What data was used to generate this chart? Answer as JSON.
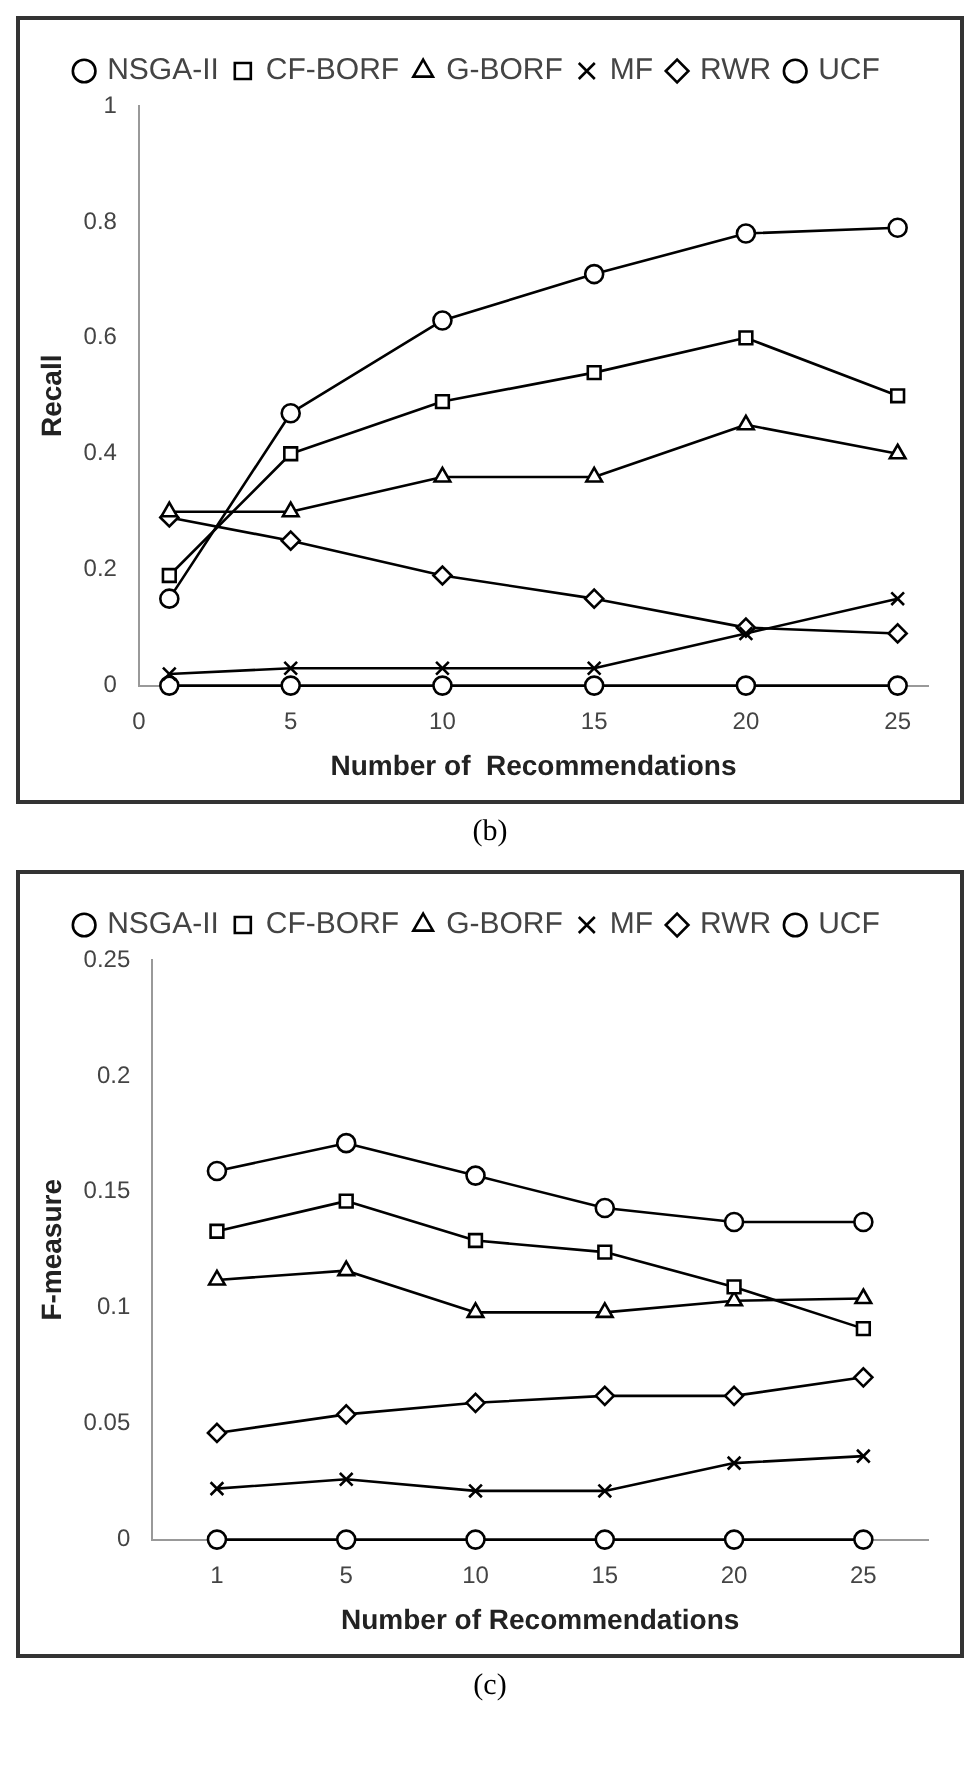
{
  "chart_data": [
    {
      "type": "line",
      "xlabel": "Number of  Recommendations",
      "ylabel": "Recall",
      "x": [
        1,
        5,
        10,
        15,
        20,
        25
      ],
      "xlim": [
        0,
        26
      ],
      "xticks": [
        0,
        5,
        10,
        15,
        20,
        25
      ],
      "ylim": [
        0,
        1
      ],
      "yticks": [
        0,
        0.2,
        0.4,
        0.6,
        0.8,
        1
      ],
      "grid": false,
      "legend": "top",
      "annotations": [
        "(b)"
      ],
      "series": [
        {
          "name": "NSGA-II",
          "color": "#000000",
          "marker": "circle",
          "values": [
            0.15,
            0.47,
            0.63,
            0.71,
            0.78,
            0.79
          ]
        },
        {
          "name": "CF-BORF",
          "color": "#000000",
          "marker": "square",
          "values": [
            0.19,
            0.4,
            0.49,
            0.54,
            0.6,
            0.5
          ]
        },
        {
          "name": "G-BORF",
          "color": "#000000",
          "marker": "triangle",
          "values": [
            0.3,
            0.3,
            0.36,
            0.36,
            0.45,
            0.4
          ]
        },
        {
          "name": "MF",
          "color": "#000000",
          "marker": "cross",
          "values": [
            0.02,
            0.03,
            0.03,
            0.03,
            0.09,
            0.15
          ]
        },
        {
          "name": "RWR",
          "color": "#000000",
          "marker": "diamond",
          "values": [
            0.29,
            0.25,
            0.19,
            0.15,
            0.1,
            0.09
          ]
        },
        {
          "name": "UCF",
          "color": "#000000",
          "marker": "circle",
          "values": [
            0,
            0,
            0,
            0,
            0,
            0
          ]
        }
      ]
    },
    {
      "type": "line",
      "xlabel": "Number of Recommendations",
      "ylabel": "F-measure",
      "categories": [
        "1",
        "5",
        "10",
        "15",
        "20",
        "25"
      ],
      "ylim": [
        0,
        0.25
      ],
      "yticks": [
        0,
        0.05,
        0.1,
        0.15,
        0.2,
        0.25
      ],
      "grid": false,
      "legend": "top",
      "annotations": [
        "(c)"
      ],
      "series": [
        {
          "name": "NSGA-II",
          "color": "#000000",
          "marker": "circle",
          "values": [
            0.159,
            0.171,
            0.157,
            0.143,
            0.137,
            0.137
          ]
        },
        {
          "name": "CF-BORF",
          "color": "#000000",
          "marker": "square",
          "values": [
            0.133,
            0.146,
            0.129,
            0.124,
            0.109,
            0.091
          ]
        },
        {
          "name": "G-BORF",
          "color": "#000000",
          "marker": "triangle",
          "values": [
            0.112,
            0.116,
            0.098,
            0.098,
            0.103,
            0.104
          ]
        },
        {
          "name": "MF",
          "color": "#000000",
          "marker": "cross",
          "values": [
            0.022,
            0.026,
            0.021,
            0.021,
            0.033,
            0.036
          ]
        },
        {
          "name": "RWR",
          "color": "#000000",
          "marker": "diamond",
          "values": [
            0.046,
            0.054,
            0.059,
            0.062,
            0.062,
            0.07
          ]
        },
        {
          "name": "UCF",
          "color": "#000000",
          "marker": "circle",
          "values": [
            0,
            0,
            0,
            0,
            0,
            0
          ]
        }
      ]
    }
  ]
}
